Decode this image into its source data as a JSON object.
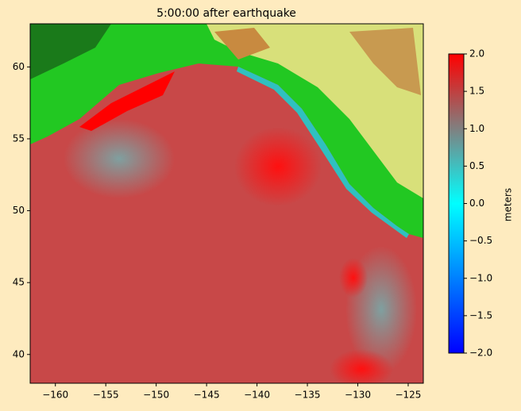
{
  "chart_data": {
    "type": "map",
    "title": "5:00:00 after earthquake",
    "xlim": [
      -162.5,
      -123.5
    ],
    "ylim": [
      38,
      63
    ],
    "xticks": [
      {
        "value": -160,
        "label": "−160"
      },
      {
        "value": -155,
        "label": "−155"
      },
      {
        "value": -150,
        "label": "−150"
      },
      {
        "value": -145,
        "label": "−145"
      },
      {
        "value": -140,
        "label": "−140"
      },
      {
        "value": -135,
        "label": "−135"
      },
      {
        "value": -130,
        "label": "−130"
      },
      {
        "value": -125,
        "label": "−125"
      }
    ],
    "yticks": [
      40,
      45,
      50,
      55,
      60
    ],
    "colorbar": {
      "label": "meters",
      "lim": [
        -2,
        2
      ],
      "ticks": [
        {
          "value": -2,
          "label": "−2.0"
        },
        {
          "value": -1.5,
          "label": "−1.5"
        },
        {
          "value": -1,
          "label": "−1.0"
        },
        {
          "value": -0.5,
          "label": "−0.5"
        },
        {
          "value": 0,
          "label": "0.0"
        },
        0.5,
        {
          "value": 1,
          "label": "1.0"
        },
        1.5,
        {
          "value": 2,
          "label": "2.0"
        }
      ],
      "colors": [
        "#0000ff",
        "#0080ff",
        "#00ffff",
        "#808080",
        "#ff0000"
      ]
    }
  }
}
